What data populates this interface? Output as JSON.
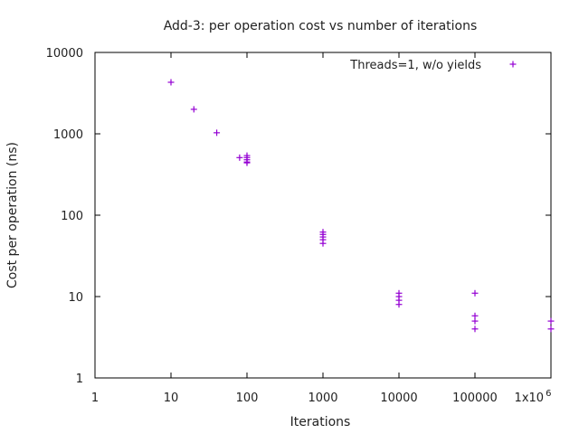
{
  "chart_data": {
    "type": "scatter",
    "title": "Add-3: per operation cost vs number of iterations",
    "xlabel": "Iterations",
    "ylabel": "Cost per operation (ns)",
    "xscale": "log",
    "yscale": "log",
    "xlim": [
      1,
      1000000
    ],
    "ylim": [
      1,
      10000
    ],
    "xticks": [
      1,
      10,
      100,
      1000,
      10000,
      100000,
      1000000
    ],
    "xtick_labels": [
      "1",
      "10",
      "100",
      "1000",
      "10000",
      "100000",
      "1x10"
    ],
    "xtick_last_exponent": "6",
    "yticks": [
      1,
      10,
      100,
      1000,
      10000
    ],
    "ytick_labels": [
      "1",
      "10",
      "100",
      "1000",
      "10000"
    ],
    "grid": false,
    "legend_position": "top-right",
    "marker": "+",
    "series": [
      {
        "name": "Threads=1, w/o yields",
        "color": "#9400d3",
        "points": [
          {
            "x": 10,
            "y": 4300
          },
          {
            "x": 20,
            "y": 2000
          },
          {
            "x": 40,
            "y": 1030
          },
          {
            "x": 80,
            "y": 510
          },
          {
            "x": 100,
            "y": 540
          },
          {
            "x": 100,
            "y": 510
          },
          {
            "x": 100,
            "y": 480
          },
          {
            "x": 100,
            "y": 450
          },
          {
            "x": 100,
            "y": 440
          },
          {
            "x": 1000,
            "y": 62
          },
          {
            "x": 1000,
            "y": 58
          },
          {
            "x": 1000,
            "y": 54
          },
          {
            "x": 1000,
            "y": 50
          },
          {
            "x": 1000,
            "y": 45
          },
          {
            "x": 10000,
            "y": 11
          },
          {
            "x": 10000,
            "y": 10
          },
          {
            "x": 10000,
            "y": 9
          },
          {
            "x": 10000,
            "y": 8
          },
          {
            "x": 100000,
            "y": 11
          },
          {
            "x": 100000,
            "y": 5.8
          },
          {
            "x": 100000,
            "y": 5
          },
          {
            "x": 100000,
            "y": 4
          },
          {
            "x": 1000000,
            "y": 5
          },
          {
            "x": 1000000,
            "y": 4
          }
        ]
      }
    ]
  }
}
